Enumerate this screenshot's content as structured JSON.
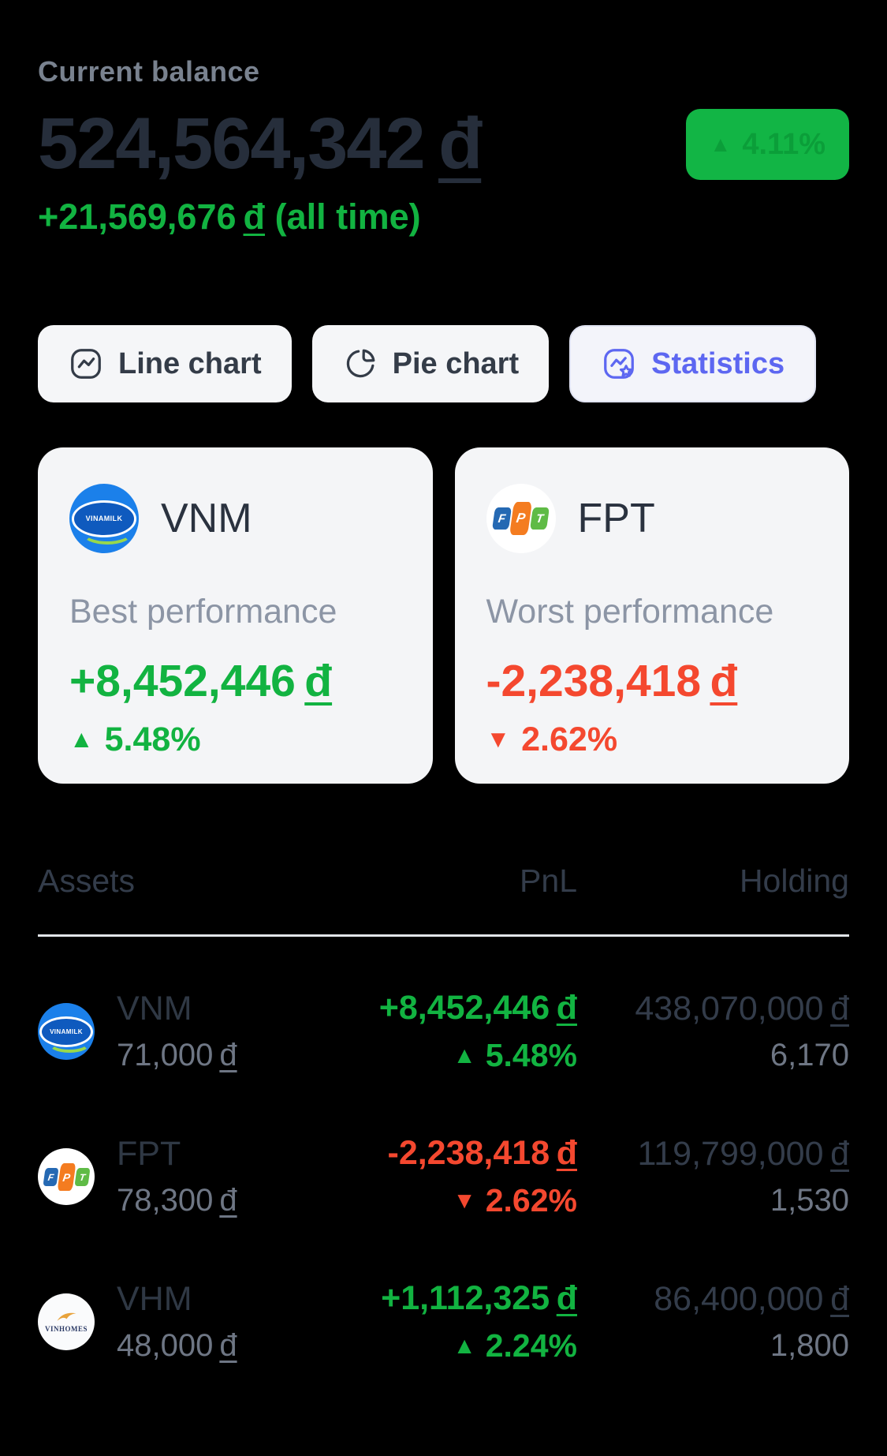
{
  "balance": {
    "label": "Current balance",
    "amount": "524,564,342",
    "currency": "đ",
    "change_badge": {
      "direction": "up",
      "value": "4.11%"
    },
    "all_time": {
      "amount": "+21,569,676",
      "currency": "đ",
      "suffix": "(all time)"
    }
  },
  "tabs": [
    {
      "label": "Line chart",
      "icon": "line-chart-icon",
      "active": false
    },
    {
      "label": "Pie chart",
      "icon": "pie-chart-icon",
      "active": false
    },
    {
      "label": "Statistics",
      "icon": "statistics-icon",
      "active": true
    }
  ],
  "performance_cards": [
    {
      "ticker": "VNM",
      "logo": "vinamilk-logo",
      "label": "Best performance",
      "amount": "+8,452,446",
      "currency": "đ",
      "direction": "up",
      "percent": "5.48%",
      "tone": "positive"
    },
    {
      "ticker": "FPT",
      "logo": "fpt-logo",
      "label": "Worst performance",
      "amount": "-2,238,418",
      "currency": "đ",
      "direction": "down",
      "percent": "2.62%",
      "tone": "negative"
    }
  ],
  "table": {
    "headers": {
      "assets": "Assets",
      "pnl": "PnL",
      "holding": "Holding"
    },
    "rows": [
      {
        "ticker": "VNM",
        "logo": "vinamilk-logo",
        "price": "71,000",
        "currency": "đ",
        "pnl_amount": "+8,452,446",
        "pnl_percent": "5.48%",
        "direction": "up",
        "tone": "positive",
        "holding_value": "438,070,000",
        "holding_qty": "6,170"
      },
      {
        "ticker": "FPT",
        "logo": "fpt-logo",
        "price": "78,300",
        "currency": "đ",
        "pnl_amount": "-2,238,418",
        "pnl_percent": "2.62%",
        "direction": "down",
        "tone": "negative",
        "holding_value": "119,799,000",
        "holding_qty": "1,530"
      },
      {
        "ticker": "VHM",
        "logo": "vinhomes-logo",
        "price": "48,000",
        "currency": "đ",
        "pnl_amount": "+1,112,325",
        "pnl_percent": "2.24%",
        "direction": "up",
        "tone": "positive",
        "holding_value": "86,400,000",
        "holding_qty": "1,800"
      }
    ]
  },
  "colors": {
    "positive": "#12B341",
    "negative": "#F4482F",
    "accent": "#5D67F1",
    "badge_bg": "#12B545",
    "badge_text": "#0B9E39",
    "background": "#000000"
  }
}
